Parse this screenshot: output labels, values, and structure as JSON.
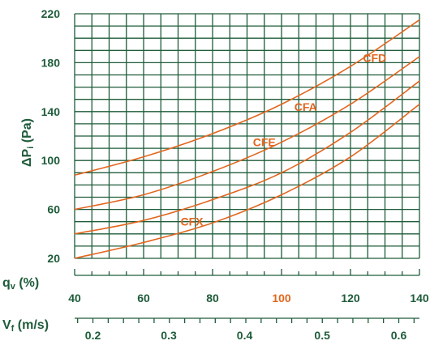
{
  "chart_data": {
    "type": "line",
    "ylabel": {
      "prefix": "ΔP",
      "sub": "i",
      "unit": " (Pa)"
    },
    "xlabel_qv": {
      "prefix": "q",
      "sub": "v",
      "unit": " (%)"
    },
    "xlabel_vf": {
      "prefix": "V",
      "sub": "f",
      "unit": " (m/s)"
    },
    "ylim": [
      20,
      220
    ],
    "y_ticks": [
      "20",
      "60",
      "100",
      "140",
      "180",
      "220"
    ],
    "xlim": [
      40,
      140
    ],
    "qv_ticks": [
      "40",
      "60",
      "80",
      "100",
      "120",
      "140"
    ],
    "vf_ticks": [
      "0.2",
      "0.3",
      "0.4",
      "0.5",
      "0.6"
    ],
    "vf_tick_qv": [
      45.3,
      67.3,
      89.3,
      111.8,
      134
    ],
    "grid": true,
    "colors": {
      "grid": "#1e5c3a",
      "curve": "#e2661e",
      "highlight_tick": "#e2661e"
    },
    "highlight_tick": "100",
    "series": [
      {
        "name": "CFD",
        "label_at": [
          127,
          184
        ],
        "x": [
          40,
          60,
          80,
          100,
          120,
          140
        ],
        "y": [
          88,
          103,
          122,
          146,
          177,
          215
        ]
      },
      {
        "name": "CFA",
        "label_at": [
          107,
          144
        ],
        "x": [
          40,
          60,
          80,
          100,
          120,
          140
        ],
        "y": [
          60,
          72,
          91,
          115,
          146,
          185
        ]
      },
      {
        "name": "CFE",
        "label_at": [
          95,
          115
        ],
        "x": [
          40,
          60,
          80,
          100,
          120,
          140
        ],
        "y": [
          40,
          51,
          68,
          90,
          123,
          165
        ]
      },
      {
        "name": "CFX",
        "label_at": [
          74,
          50
        ],
        "x": [
          40,
          60,
          80,
          100,
          120,
          140
        ],
        "y": [
          20,
          33,
          49,
          72,
          103,
          146
        ]
      }
    ]
  }
}
